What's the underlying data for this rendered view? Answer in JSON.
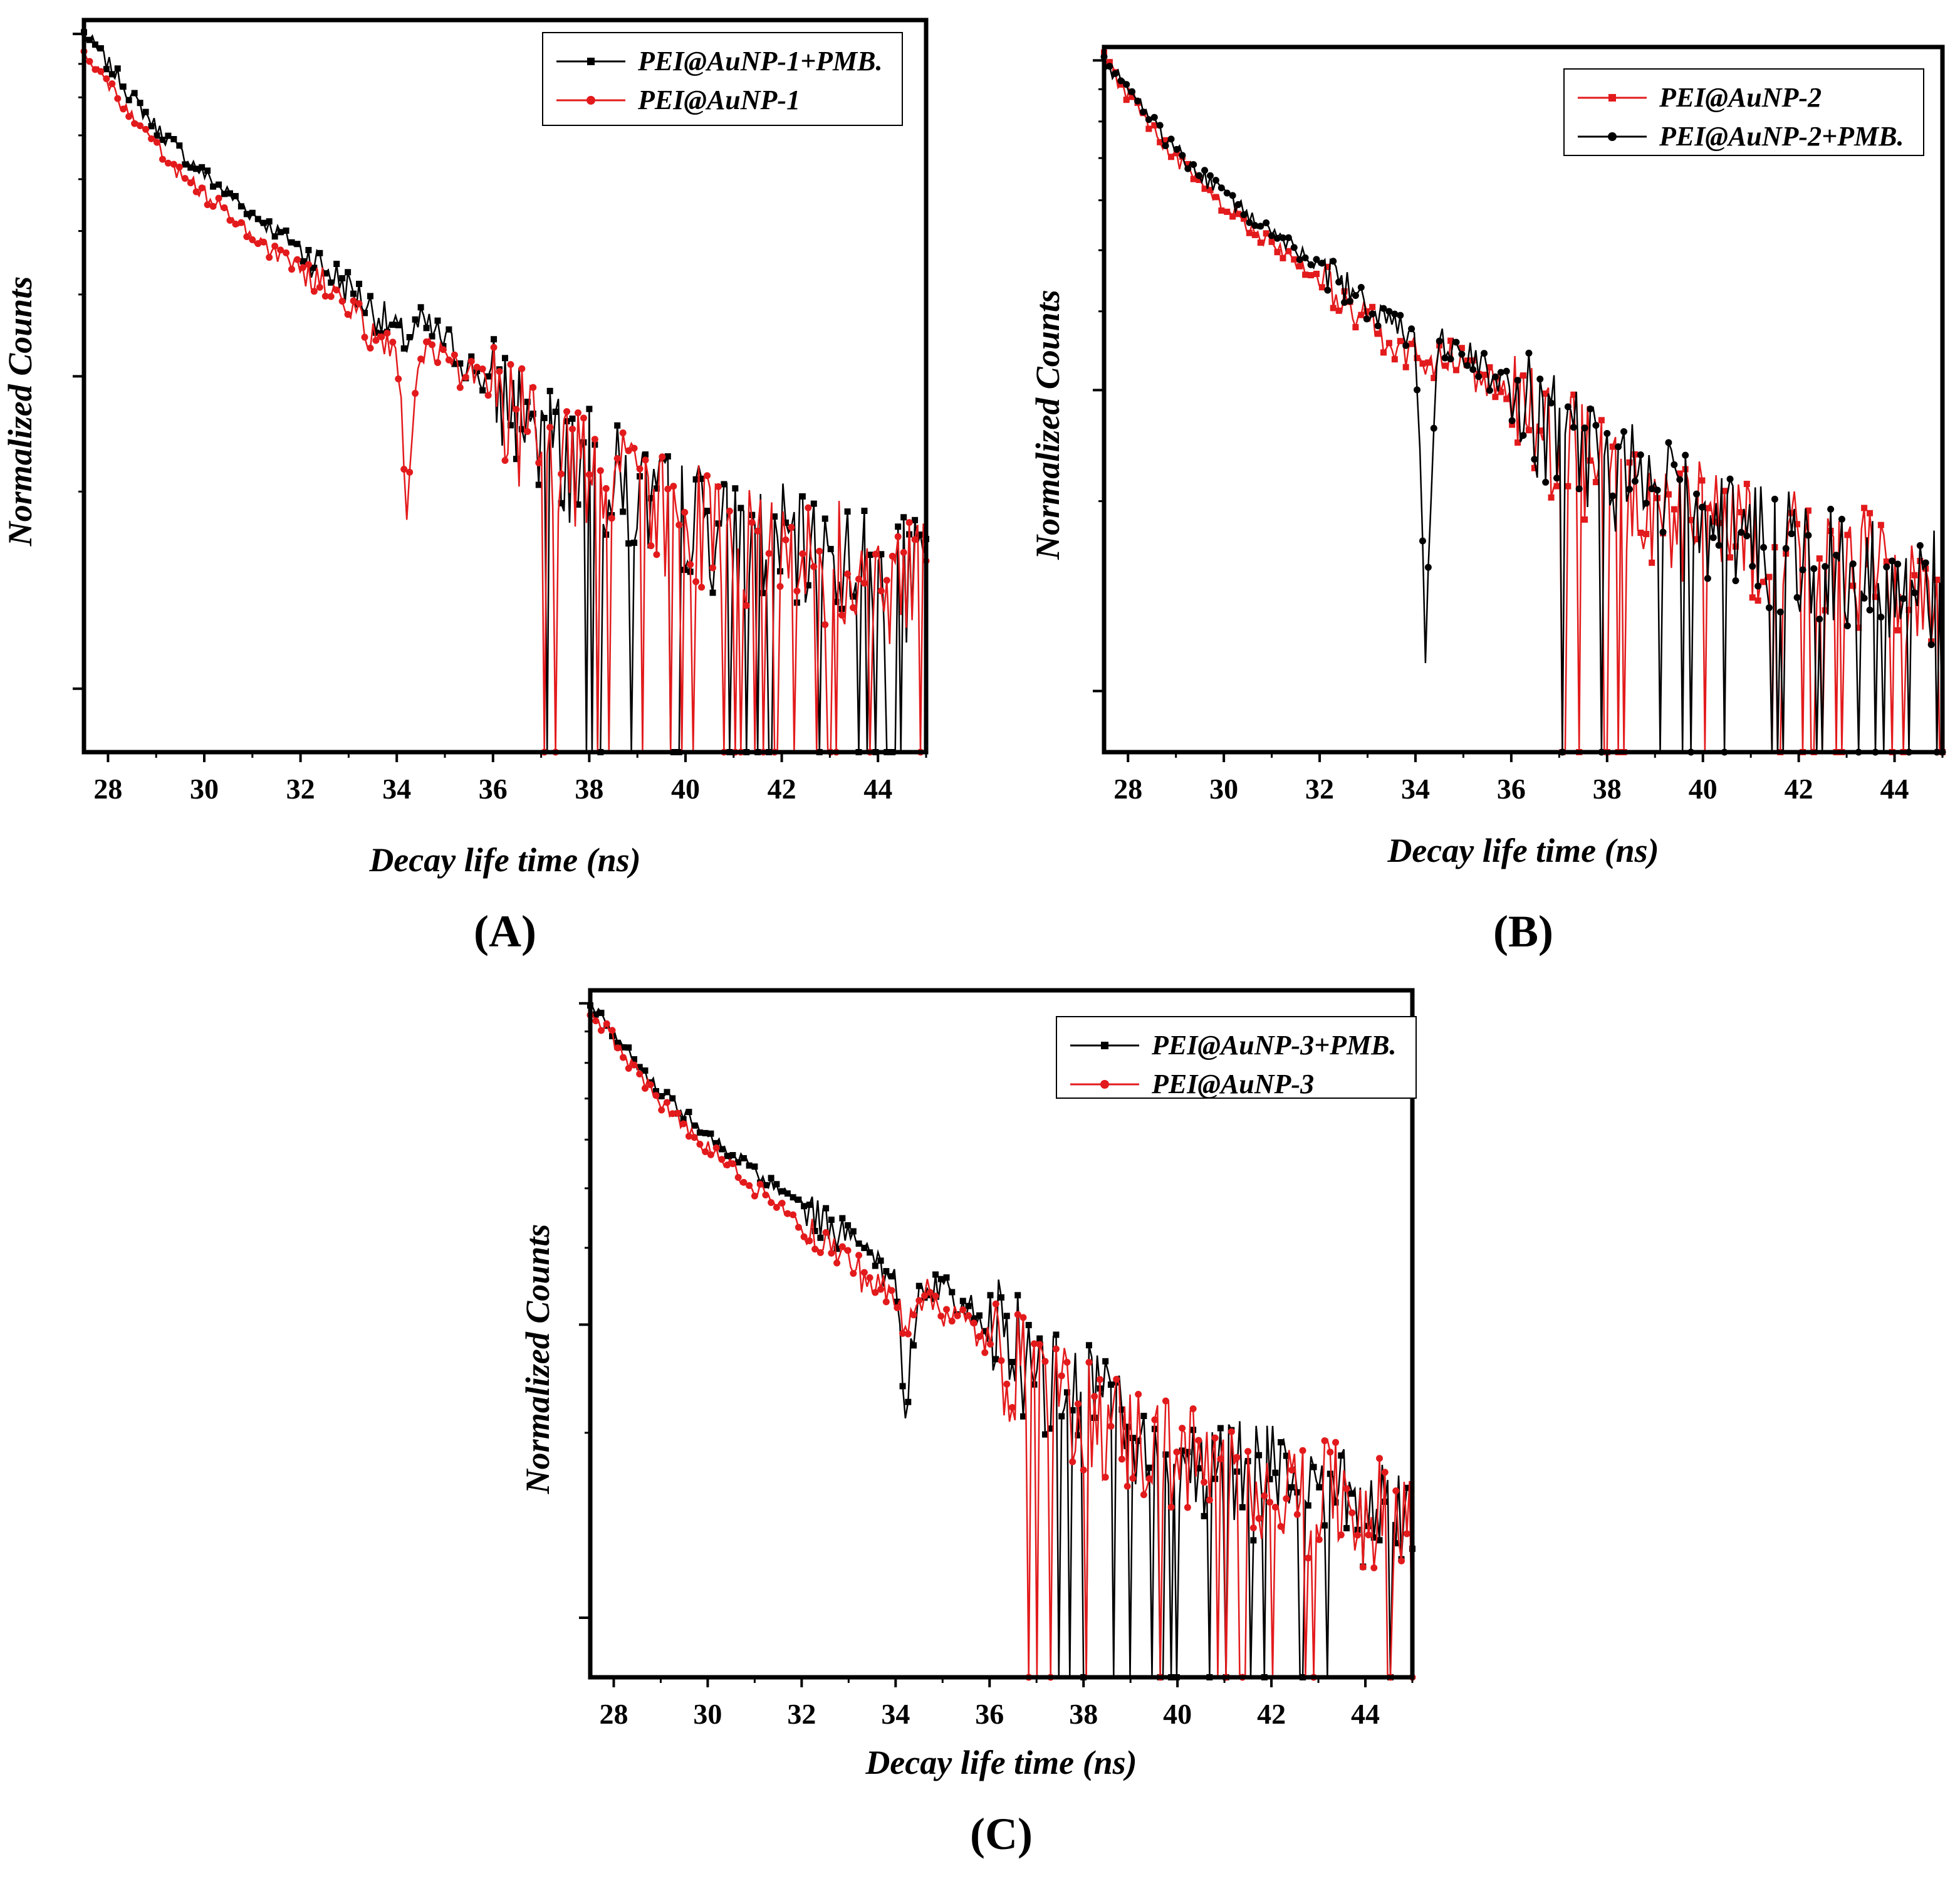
{
  "chart_data": [
    {
      "type": "line",
      "panel_label": "(A)",
      "xlabel": "Decay life time (ns)",
      "ylabel": "Normalized Counts",
      "y_scale": "log",
      "xlim": [
        27.5,
        45
      ],
      "x_ticks": [
        28,
        30,
        32,
        34,
        36,
        38,
        40,
        42,
        44
      ],
      "x_tick_labels": [
        "28",
        "30",
        "32",
        "34",
        "36",
        "38",
        "40",
        "42",
        "44"
      ],
      "legend_position": "top-right",
      "series": [
        {
          "name": "PEI@AuNP-1+PMB.",
          "color": "#000000",
          "marker": "square",
          "x": [
            27.5,
            28,
            28.5,
            29,
            29.5,
            30,
            30.5,
            31,
            31.5,
            32,
            32.5,
            33,
            33.5,
            34,
            34.2,
            34.5,
            35,
            35.5,
            36,
            36.5,
            37,
            37.5,
            38,
            38.5,
            39,
            39.5,
            40,
            40.5,
            41,
            41.5,
            42,
            42.5,
            43,
            43.5,
            44,
            44.5,
            45
          ],
          "y": [
            1.0,
            0.9,
            0.8,
            0.72,
            0.66,
            0.61,
            0.57,
            0.53,
            0.5,
            0.47,
            0.44,
            0.41,
            0.38,
            0.35,
            0.34,
            0.36,
            0.34,
            0.31,
            0.29,
            0.27,
            0.25,
            0.23,
            0.22,
            0.21,
            0.2,
            0.19,
            0.19,
            0.18,
            0.17,
            0.17,
            0.17,
            0.16,
            0.16,
            0.16,
            0.15,
            0.15,
            0.15
          ]
        },
        {
          "name": "PEI@AuNP-1",
          "color": "#e31a1c",
          "marker": "circle",
          "x": [
            27.5,
            28,
            28.5,
            29,
            29.5,
            30,
            30.5,
            31,
            31.5,
            32,
            32.5,
            33,
            33.5,
            34,
            34.2,
            34.5,
            35,
            35.5,
            36,
            36.5,
            37,
            37.5,
            38,
            38.5,
            39,
            39.5,
            40,
            40.5,
            41,
            41.5,
            42,
            42.5,
            43,
            43.5,
            44,
            44.5,
            45
          ],
          "y": [
            0.95,
            0.84,
            0.74,
            0.67,
            0.61,
            0.57,
            0.53,
            0.49,
            0.46,
            0.44,
            0.41,
            0.38,
            0.35,
            0.33,
            0.18,
            0.34,
            0.32,
            0.3,
            0.28,
            0.26,
            0.24,
            0.23,
            0.22,
            0.21,
            0.2,
            0.19,
            0.18,
            0.18,
            0.17,
            0.17,
            0.16,
            0.16,
            0.16,
            0.16,
            0.15,
            0.15,
            0.15
          ]
        }
      ]
    },
    {
      "type": "line",
      "panel_label": "(B)",
      "xlabel": "Decay life time (ns)",
      "ylabel": "Normalized Counts",
      "y_scale": "log",
      "xlim": [
        27.5,
        45
      ],
      "x_ticks": [
        28,
        30,
        32,
        34,
        36,
        38,
        40,
        42,
        44
      ],
      "x_tick_labels": [
        "28",
        "30",
        "32",
        "34",
        "36",
        "38",
        "40",
        "42",
        "44"
      ],
      "legend_position": "top-right",
      "series": [
        {
          "name": "PEI@AuNP-2",
          "color": "#e31a1c",
          "marker": "square",
          "x": [
            27.5,
            28,
            28.5,
            29,
            29.5,
            30,
            30.5,
            31,
            31.5,
            32,
            32.5,
            33,
            33.5,
            34,
            34.2,
            34.5,
            35,
            35.5,
            36,
            36.5,
            37,
            37.5,
            38,
            38.5,
            39,
            39.5,
            40,
            40.5,
            41,
            41.5,
            42,
            42.5,
            43,
            43.5,
            44,
            44.5,
            45
          ],
          "y": [
            1.0,
            0.88,
            0.78,
            0.7,
            0.64,
            0.59,
            0.55,
            0.51,
            0.48,
            0.45,
            0.42,
            0.39,
            0.36,
            0.34,
            0.3,
            0.35,
            0.33,
            0.31,
            0.29,
            0.27,
            0.25,
            0.24,
            0.22,
            0.21,
            0.2,
            0.19,
            0.19,
            0.18,
            0.18,
            0.17,
            0.17,
            0.16,
            0.16,
            0.16,
            0.15,
            0.15,
            0.15
          ]
        },
        {
          "name": "PEI@AuNP-2+PMB.",
          "color": "#000000",
          "marker": "circle",
          "x": [
            27.5,
            28,
            28.5,
            29,
            29.5,
            30,
            30.5,
            31,
            31.5,
            32,
            32.5,
            33,
            33.5,
            34,
            34.2,
            34.5,
            35,
            35.5,
            36,
            36.5,
            37,
            37.5,
            38,
            38.5,
            39,
            39.5,
            40,
            40.5,
            41,
            41.5,
            42,
            42.5,
            43,
            43.5,
            44,
            44.5,
            45
          ],
          "y": [
            1.0,
            0.9,
            0.8,
            0.72,
            0.66,
            0.61,
            0.57,
            0.53,
            0.5,
            0.47,
            0.44,
            0.41,
            0.38,
            0.35,
            0.1,
            0.36,
            0.34,
            0.32,
            0.3,
            0.28,
            0.26,
            0.24,
            0.23,
            0.22,
            0.21,
            0.2,
            0.19,
            0.18,
            0.18,
            0.17,
            0.17,
            0.16,
            0.16,
            0.16,
            0.15,
            0.15,
            0.15
          ]
        }
      ]
    },
    {
      "type": "line",
      "panel_label": "(C)",
      "xlabel": "Decay life time (ns)",
      "ylabel": "Normalized Counts",
      "y_scale": "log",
      "xlim": [
        27.5,
        45
      ],
      "x_ticks": [
        28,
        30,
        32,
        34,
        36,
        38,
        40,
        42,
        44
      ],
      "x_tick_labels": [
        "28",
        "30",
        "32",
        "34",
        "36",
        "38",
        "40",
        "42",
        "44"
      ],
      "legend_position": "top-right",
      "series": [
        {
          "name": "PEI@AuNP-3+PMB.",
          "color": "#000000",
          "marker": "square",
          "x": [
            27.5,
            28,
            28.5,
            29,
            29.5,
            30,
            30.5,
            31,
            31.5,
            32,
            32.5,
            33,
            33.5,
            34,
            34.2,
            34.5,
            35,
            35.5,
            36,
            36.5,
            37,
            37.5,
            38,
            38.5,
            39,
            39.5,
            40,
            40.5,
            41,
            41.5,
            42,
            42.5,
            43,
            43.5,
            44,
            44.5,
            45
          ],
          "y": [
            1.0,
            0.9,
            0.8,
            0.72,
            0.66,
            0.61,
            0.57,
            0.53,
            0.5,
            0.47,
            0.44,
            0.41,
            0.38,
            0.35,
            0.2,
            0.36,
            0.34,
            0.32,
            0.3,
            0.28,
            0.26,
            0.24,
            0.23,
            0.22,
            0.21,
            0.2,
            0.19,
            0.18,
            0.18,
            0.17,
            0.17,
            0.16,
            0.16,
            0.16,
            0.15,
            0.15,
            0.15
          ]
        },
        {
          "name": "PEI@AuNP-3",
          "color": "#e31a1c",
          "marker": "circle",
          "x": [
            27.5,
            28,
            28.5,
            29,
            29.5,
            30,
            30.5,
            31,
            31.5,
            32,
            32.5,
            33,
            33.5,
            34,
            34.2,
            34.5,
            35,
            35.5,
            36,
            36.5,
            37,
            37.5,
            38,
            38.5,
            39,
            39.5,
            40,
            40.5,
            41,
            41.5,
            42,
            42.5,
            43,
            43.5,
            44,
            44.5,
            45
          ],
          "y": [
            0.98,
            0.87,
            0.77,
            0.69,
            0.63,
            0.58,
            0.54,
            0.5,
            0.47,
            0.44,
            0.41,
            0.38,
            0.35,
            0.33,
            0.3,
            0.34,
            0.32,
            0.3,
            0.28,
            0.26,
            0.25,
            0.23,
            0.22,
            0.21,
            0.2,
            0.19,
            0.19,
            0.18,
            0.17,
            0.17,
            0.17,
            0.16,
            0.16,
            0.16,
            0.15,
            0.15,
            0.15
          ]
        }
      ]
    }
  ]
}
